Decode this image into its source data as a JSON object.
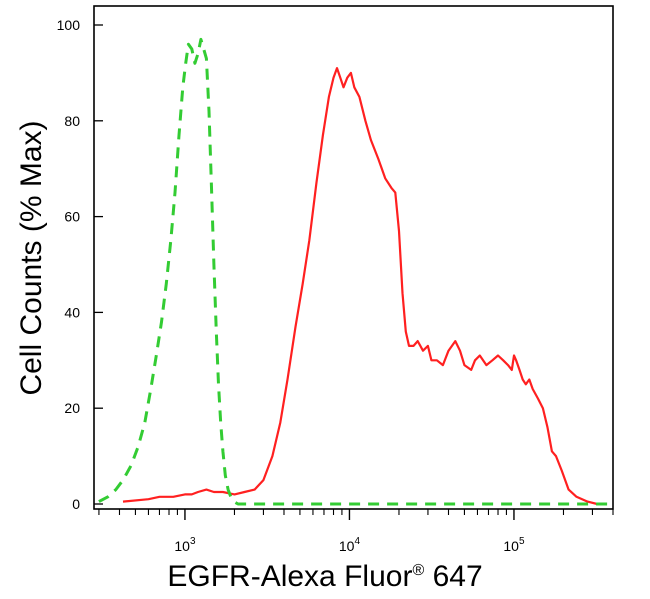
{
  "chart_data": {
    "type": "line",
    "title": "",
    "ylabel": "Cell Counts (% Max)",
    "xlabel": {
      "prefix": "EGFR-Alexa Fluor",
      "superscript": "®",
      "suffix": " 647"
    },
    "x_scale": "log",
    "xlim": [
      280,
      400000
    ],
    "ylim": [
      0,
      100
    ],
    "y_ticks": [
      0,
      20,
      40,
      60,
      80,
      100
    ],
    "x_ticks": [
      {
        "value": 1000,
        "base": "10",
        "exp": "3"
      },
      {
        "value": 10000,
        "base": "10",
        "exp": "4"
      },
      {
        "value": 100000,
        "base": "10",
        "exp": "5"
      }
    ],
    "grid": false,
    "series": [
      {
        "color": "#ff2020",
        "dash": "solid",
        "points": [
          [
            420,
            0.5
          ],
          [
            600,
            1.0
          ],
          [
            700,
            1.5
          ],
          [
            850,
            1.5
          ],
          [
            1000,
            2.0
          ],
          [
            1100,
            2.0
          ],
          [
            1200,
            2.5
          ],
          [
            1350,
            3.0
          ],
          [
            1500,
            2.5
          ],
          [
            1700,
            2.5
          ],
          [
            2000,
            2.0
          ],
          [
            2300,
            2.5
          ],
          [
            2650,
            3.0
          ],
          [
            3000,
            5.0
          ],
          [
            3400,
            10
          ],
          [
            3800,
            17
          ],
          [
            4200,
            26
          ],
          [
            4700,
            37
          ],
          [
            5200,
            46
          ],
          [
            5700,
            55
          ],
          [
            6300,
            67
          ],
          [
            6900,
            77
          ],
          [
            7500,
            85
          ],
          [
            8000,
            89
          ],
          [
            8400,
            91
          ],
          [
            8800,
            89
          ],
          [
            9200,
            87
          ],
          [
            9700,
            89
          ],
          [
            10200,
            90
          ],
          [
            10700,
            87
          ],
          [
            11500,
            85
          ],
          [
            12500,
            80
          ],
          [
            13500,
            76
          ],
          [
            15000,
            72
          ],
          [
            16500,
            68
          ],
          [
            18000,
            66
          ],
          [
            19000,
            65
          ],
          [
            20000,
            57
          ],
          [
            21000,
            44
          ],
          [
            22000,
            36
          ],
          [
            23000,
            33
          ],
          [
            24500,
            33
          ],
          [
            26000,
            34
          ],
          [
            28000,
            32
          ],
          [
            30000,
            33
          ],
          [
            31500,
            30
          ],
          [
            34000,
            30
          ],
          [
            37000,
            29
          ],
          [
            40000,
            32
          ],
          [
            44000,
            34
          ],
          [
            47000,
            32
          ],
          [
            50000,
            29
          ],
          [
            55000,
            28
          ],
          [
            58000,
            30
          ],
          [
            62000,
            31
          ],
          [
            68000,
            29
          ],
          [
            74000,
            30
          ],
          [
            80000,
            31
          ],
          [
            86000,
            30
          ],
          [
            92000,
            29
          ],
          [
            97000,
            28
          ],
          [
            100000,
            31
          ],
          [
            103000,
            30
          ],
          [
            108000,
            28
          ],
          [
            113000,
            26
          ],
          [
            118000,
            25
          ],
          [
            124000,
            26
          ],
          [
            130000,
            24
          ],
          [
            140000,
            22
          ],
          [
            150000,
            20
          ],
          [
            160000,
            16
          ],
          [
            170000,
            11
          ],
          [
            180000,
            10
          ],
          [
            195000,
            7
          ],
          [
            215000,
            3
          ],
          [
            240000,
            1.5
          ],
          [
            280000,
            0.5
          ],
          [
            320000,
            0
          ]
        ]
      },
      {
        "color": "#33cc33",
        "dash": "dashed",
        "points": [
          [
            300,
            0.5
          ],
          [
            340,
            1.5
          ],
          [
            380,
            3
          ],
          [
            420,
            5
          ],
          [
            470,
            8
          ],
          [
            520,
            12
          ],
          [
            570,
            17
          ],
          [
            620,
            24
          ],
          [
            670,
            31
          ],
          [
            720,
            38
          ],
          [
            770,
            46
          ],
          [
            820,
            55
          ],
          [
            870,
            65
          ],
          [
            920,
            77
          ],
          [
            970,
            87
          ],
          [
            1010,
            92
          ],
          [
            1050,
            96
          ],
          [
            1100,
            95
          ],
          [
            1150,
            92
          ],
          [
            1200,
            94
          ],
          [
            1250,
            97
          ],
          [
            1300,
            95
          ],
          [
            1350,
            93
          ],
          [
            1400,
            82
          ],
          [
            1450,
            66
          ],
          [
            1500,
            50
          ],
          [
            1550,
            36
          ],
          [
            1600,
            25
          ],
          [
            1650,
            17
          ],
          [
            1700,
            11
          ],
          [
            1760,
            6
          ],
          [
            1830,
            3
          ],
          [
            1900,
            1.5
          ],
          [
            1980,
            0.5
          ],
          [
            2100,
            0
          ],
          [
            400000,
            0
          ]
        ]
      }
    ]
  }
}
